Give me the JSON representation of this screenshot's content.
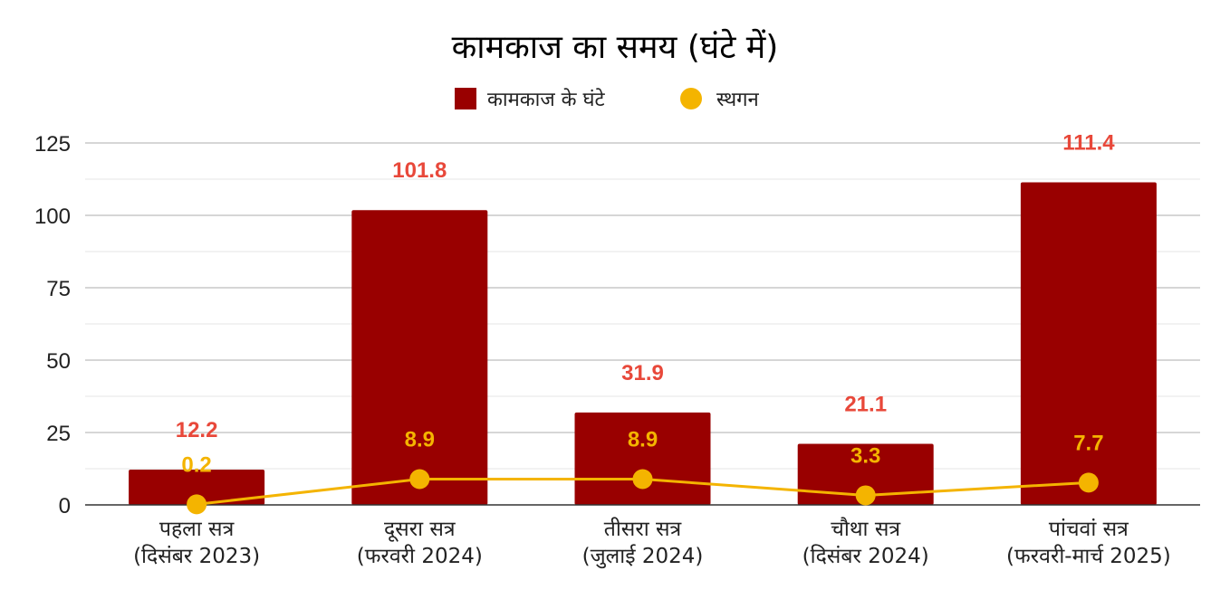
{
  "chart_data": {
    "type": "bar",
    "title": "कामकाज का समय (घंटे में)",
    "categories": [
      [
        "पहला सत्र",
        "(दिसंबर 2023)"
      ],
      [
        "दूसरा सत्र",
        "(फरवरी 2024)"
      ],
      [
        "तीसरा सत्र",
        "(जुलाई 2024)"
      ],
      [
        "चौथा सत्र",
        "(दिसंबर 2024)"
      ],
      [
        "पांचवां सत्र",
        "(फरवरी-मार्च 2025)"
      ]
    ],
    "series": [
      {
        "name": "कामकाज के घंटे",
        "kind": "bar",
        "color": "#990000",
        "label_color": "#e8483a",
        "values": [
          12.2,
          101.8,
          31.9,
          21.1,
          111.4
        ],
        "labels": [
          "12.2",
          "101.8",
          "31.9",
          "21.1",
          "111.4"
        ]
      },
      {
        "name": "स्थगन",
        "kind": "line",
        "color": "#f4b400",
        "label_color": "#f4b400",
        "values": [
          0.2,
          8.9,
          8.9,
          3.3,
          7.7
        ],
        "labels": [
          "0.2",
          "8.9",
          "8.9",
          "3.3",
          "7.7"
        ]
      }
    ],
    "y_ticks": [
      "0",
      "25",
      "50",
      "75",
      "100",
      "125"
    ],
    "ylim": [
      0,
      125
    ],
    "grid": true,
    "legend_position": "top-center"
  }
}
